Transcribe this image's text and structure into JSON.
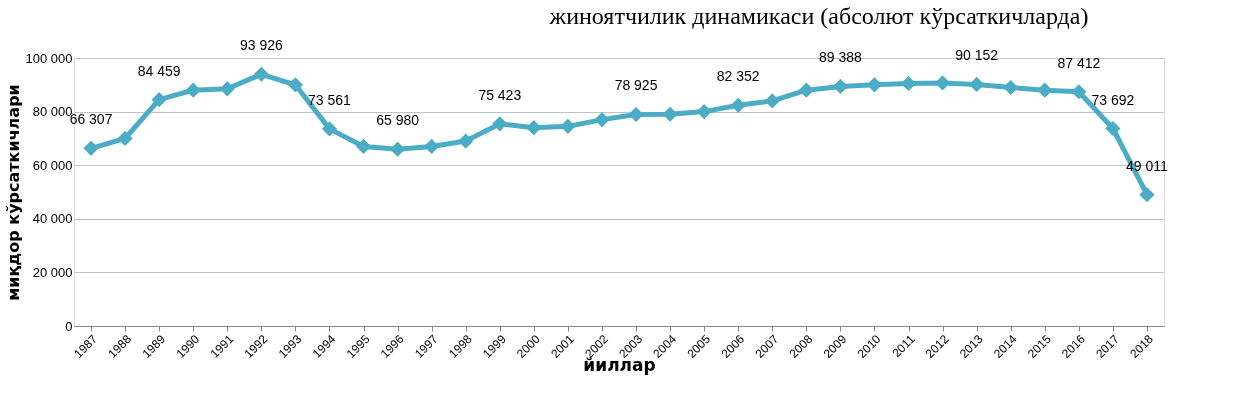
{
  "chart_data": {
    "type": "line",
    "title": "жиноятчилик  динамикаси (абсолют кўрсаткичларда)",
    "xlabel": "йиллар",
    "ylabel": "миқдор кўрсаткичлари",
    "categories": [
      "1987",
      "1988",
      "1989",
      "1990",
      "1991",
      "1992",
      "1993",
      "1994",
      "1995",
      "1996",
      "1997",
      "1998",
      "1999",
      "2000",
      "2001",
      "2002",
      "2003",
      "2004",
      "2005",
      "2006",
      "2007",
      "2008",
      "2009",
      "2010",
      "2011",
      "2012",
      "2013",
      "2014",
      "2015",
      "2016",
      "2017",
      "2018"
    ],
    "series": [
      {
        "color": "#4bacc6",
        "values": [
          66307,
          70000,
          84459,
          88000,
          88500,
          93926,
          90000,
          73561,
          67000,
          65980,
          67000,
          69000,
          75423,
          74000,
          74500,
          77000,
          78925,
          79000,
          80000,
          82352,
          84000,
          88000,
          89388,
          90000,
          90500,
          90700,
          90152,
          89000,
          88000,
          87412,
          73692,
          49011
        ],
        "value_labels": [
          "66 307",
          null,
          "84 459",
          null,
          null,
          "93 926",
          null,
          "73 561",
          null,
          "65 980",
          null,
          null,
          "75 423",
          null,
          null,
          null,
          "78 925",
          null,
          null,
          "82 352",
          null,
          null,
          "89 388",
          null,
          null,
          null,
          "90 152",
          null,
          null,
          "87 412",
          "73 692",
          "49 011"
        ]
      }
    ],
    "ylim": [
      0,
      100000
    ],
    "yticks": [
      {
        "value": 0,
        "label": "0"
      },
      {
        "value": 20000,
        "label": "20 000"
      },
      {
        "value": 40000,
        "label": "40 000"
      },
      {
        "value": 60000,
        "label": "60 000"
      },
      {
        "value": 80000,
        "label": "80 000"
      },
      {
        "value": 100000,
        "label": "100 000"
      }
    ],
    "grid": "y",
    "marker": "diamond",
    "line_style": "solid"
  }
}
